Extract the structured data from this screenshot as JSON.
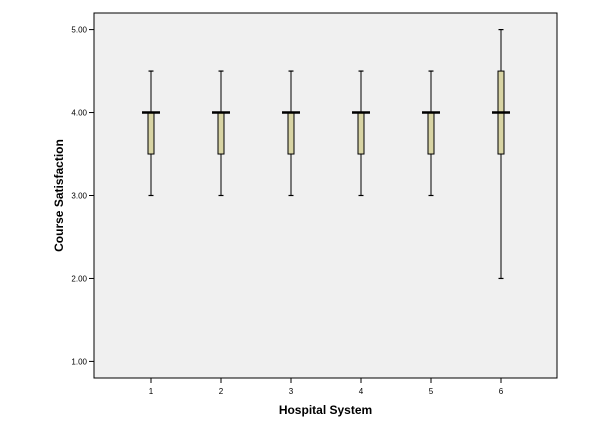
{
  "chart_data": {
    "type": "boxplot",
    "title": "",
    "xlabel": "Hospital System",
    "ylabel": "Course Satisfaction",
    "ylim": [
      0.8,
      5.2
    ],
    "yticks": [
      "1.00",
      "2.00",
      "3.00",
      "4.00",
      "5.00"
    ],
    "ytick_values": [
      1,
      2,
      3,
      4,
      5
    ],
    "categories": [
      "1",
      "2",
      "3",
      "4",
      "5",
      "6"
    ],
    "boxes": [
      {
        "category": "1",
        "min": 3.0,
        "q1": 3.5,
        "median": 4.0,
        "q3": 4.0,
        "max": 4.5
      },
      {
        "category": "2",
        "min": 3.0,
        "q1": 3.5,
        "median": 4.0,
        "q3": 4.0,
        "max": 4.5
      },
      {
        "category": "3",
        "min": 3.0,
        "q1": 3.5,
        "median": 4.0,
        "q3": 4.0,
        "max": 4.5
      },
      {
        "category": "4",
        "min": 3.0,
        "q1": 3.5,
        "median": 4.0,
        "q3": 4.0,
        "max": 4.5
      },
      {
        "category": "5",
        "min": 3.0,
        "q1": 3.5,
        "median": 4.0,
        "q3": 4.0,
        "max": 4.5
      },
      {
        "category": "6",
        "min": 2.0,
        "q1": 3.5,
        "median": 4.0,
        "q3": 4.5,
        "max": 5.0
      }
    ],
    "grid": false,
    "legend": "none",
    "colors": {
      "plot_background": "#f0f0f0",
      "box_fill": "#d8d4a4",
      "line": "#000000"
    }
  }
}
